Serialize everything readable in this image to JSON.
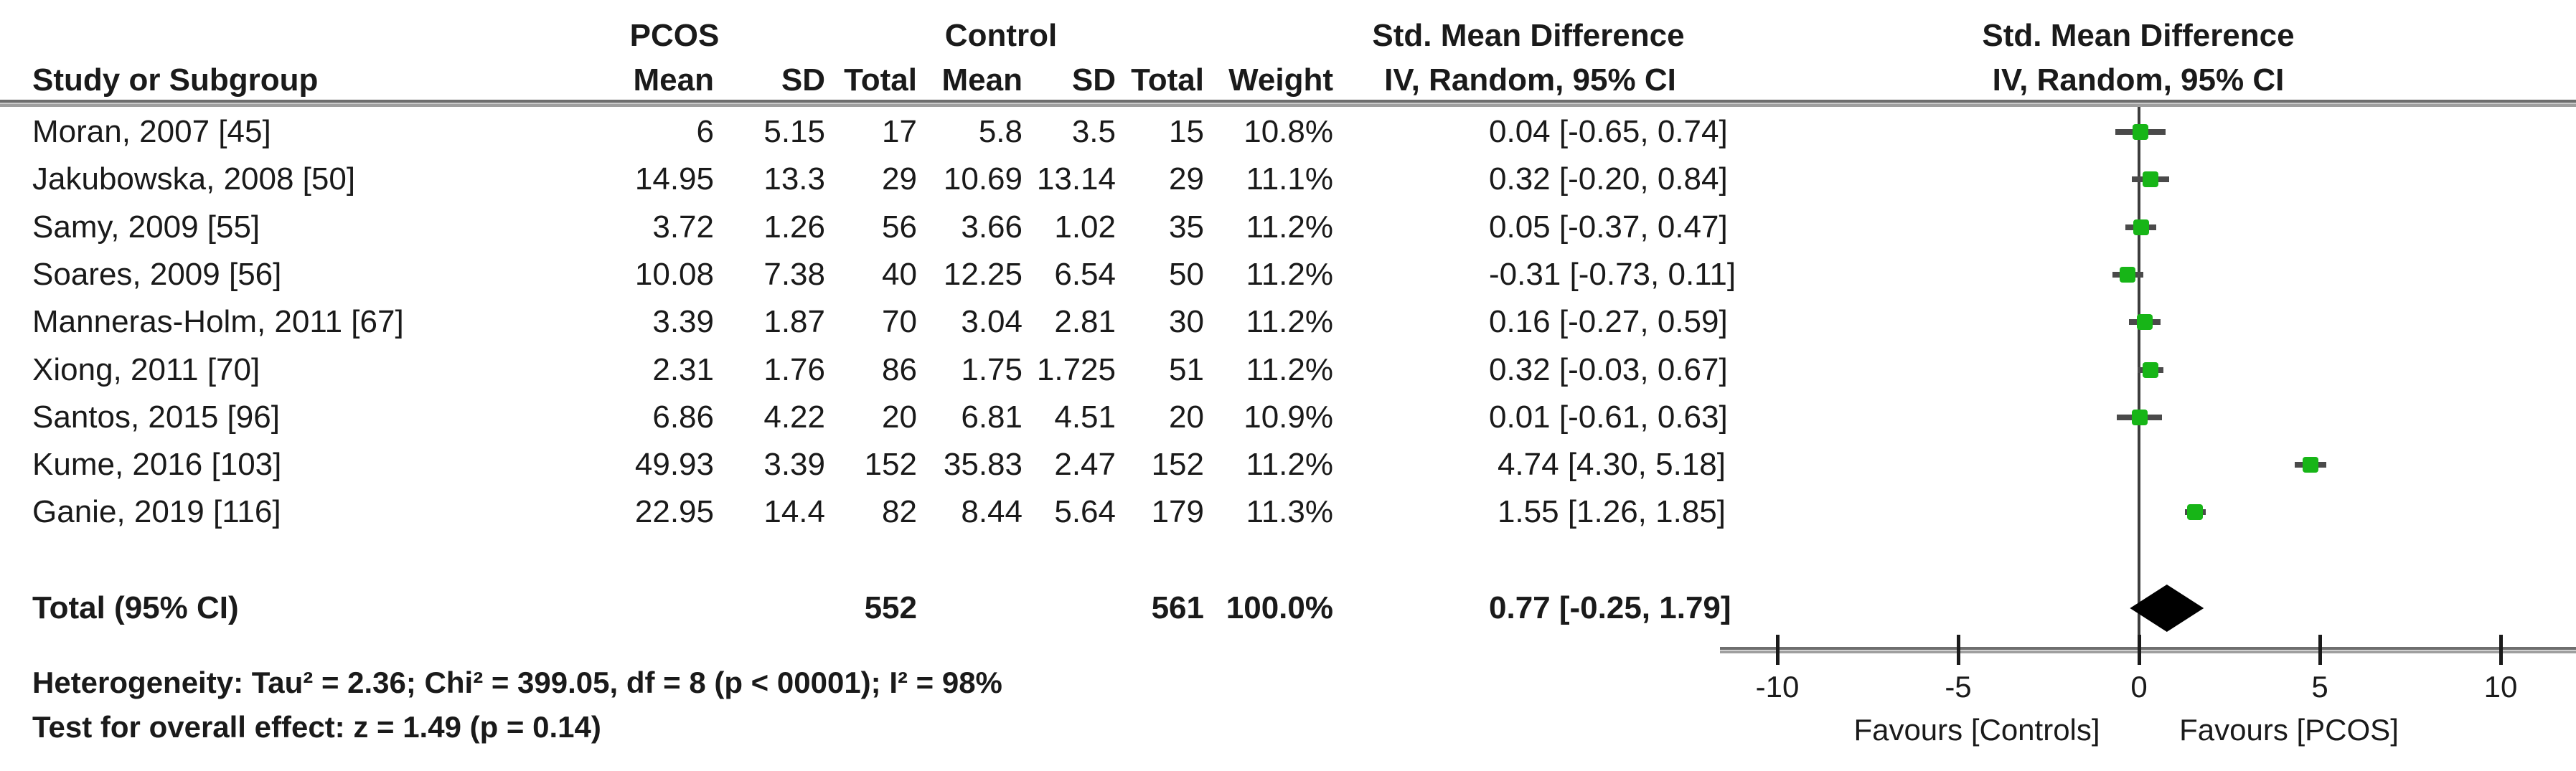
{
  "table": {
    "group_headers": {
      "pcos": "PCOS",
      "control": "Control",
      "smd_table": "Std. Mean Difference",
      "smd_plot": "Std. Mean Difference"
    },
    "col_headers": {
      "study": "Study or Subgroup",
      "pcos_mean": "Mean",
      "pcos_sd": "SD",
      "pcos_total": "Total",
      "ctrl_mean": "Mean",
      "ctrl_sd": "SD",
      "ctrl_total": "Total",
      "weight": "Weight",
      "ci": "IV, Random, 95% CI",
      "ci_plot": "IV, Random, 95% CI"
    },
    "studies": [
      {
        "name": "Moran, 2007 [45]",
        "pcos_mean": "6",
        "pcos_sd": "5.15",
        "pcos_total": "17",
        "ctrl_mean": "5.8",
        "ctrl_sd": "3.5",
        "ctrl_total": "15",
        "weight": "10.8%",
        "ci_text": "0.04 [-0.65, 0.74]"
      },
      {
        "name": "Jakubowska, 2008 [50]",
        "pcos_mean": "14.95",
        "pcos_sd": "13.3",
        "pcos_total": "29",
        "ctrl_mean": "10.69",
        "ctrl_sd": "13.14",
        "ctrl_total": "29",
        "weight": "11.1%",
        "ci_text": "0.32 [-0.20, 0.84]"
      },
      {
        "name": "Samy, 2009 [55]",
        "pcos_mean": "3.72",
        "pcos_sd": "1.26",
        "pcos_total": "56",
        "ctrl_mean": "3.66",
        "ctrl_sd": "1.02",
        "ctrl_total": "35",
        "weight": "11.2%",
        "ci_text": "0.05 [-0.37, 0.47]"
      },
      {
        "name": "Soares, 2009 [56]",
        "pcos_mean": "10.08",
        "pcos_sd": "7.38",
        "pcos_total": "40",
        "ctrl_mean": "12.25",
        "ctrl_sd": "6.54",
        "ctrl_total": "50",
        "weight": "11.2%",
        "ci_text": "-0.31 [-0.73, 0.11]"
      },
      {
        "name": "Manneras-Holm, 2011 [67]",
        "pcos_mean": "3.39",
        "pcos_sd": "1.87",
        "pcos_total": "70",
        "ctrl_mean": "3.04",
        "ctrl_sd": "2.81",
        "ctrl_total": "30",
        "weight": "11.2%",
        "ci_text": "0.16 [-0.27, 0.59]"
      },
      {
        "name": "Xiong, 2011 [70]",
        "pcos_mean": "2.31",
        "pcos_sd": "1.76",
        "pcos_total": "86",
        "ctrl_mean": "1.75",
        "ctrl_sd": "1.725",
        "ctrl_total": "51",
        "weight": "11.2%",
        "ci_text": "0.32 [-0.03, 0.67]"
      },
      {
        "name": "Santos, 2015 [96]",
        "pcos_mean": "6.86",
        "pcos_sd": "4.22",
        "pcos_total": "20",
        "ctrl_mean": "6.81",
        "ctrl_sd": "4.51",
        "ctrl_total": "20",
        "weight": "10.9%",
        "ci_text": "0.01 [-0.61, 0.63]"
      },
      {
        "name": "Kume, 2016 [103]",
        "pcos_mean": "49.93",
        "pcos_sd": "3.39",
        "pcos_total": "152",
        "ctrl_mean": "35.83",
        "ctrl_sd": "2.47",
        "ctrl_total": "152",
        "weight": "11.2%",
        "ci_text": "4.74 [4.30, 5.18]"
      },
      {
        "name": "Ganie, 2019 [116]",
        "pcos_mean": "22.95",
        "pcos_sd": "14.4",
        "pcos_total": "82",
        "ctrl_mean": "8.44",
        "ctrl_sd": "5.64",
        "ctrl_total": "179",
        "weight": "11.3%",
        "ci_text": "1.55 [1.26, 1.85]"
      }
    ],
    "total_row": {
      "label": "Total (95% CI)",
      "pcos_total": "552",
      "ctrl_total": "561",
      "weight": "100.0%",
      "ci_text": "0.77 [-0.25, 1.79]"
    },
    "footer": {
      "heterogeneity": "Heterogeneity: Tau² = 2.36; Chi² = 399.05, df = 8 (p < 00001); I² = 98%",
      "overall_effect": "Test for overall effect: z = 1.49 (p = 0.14)"
    }
  },
  "chart_data": {
    "type": "forest",
    "title": "Std. Mean Difference, IV, Random, 95% CI",
    "x_axis": {
      "ticks": [
        -10,
        -5,
        0,
        5,
        10
      ],
      "min": -11.6,
      "max": 12.1,
      "label_left": "Favours [Controls]",
      "label_right": "Favours [PCOS]"
    },
    "effects": [
      {
        "study": "Moran, 2007 [45]",
        "smd": 0.04,
        "ci_low": -0.65,
        "ci_high": 0.74,
        "weight_pct": 10.8
      },
      {
        "study": "Jakubowska, 2008 [50]",
        "smd": 0.32,
        "ci_low": -0.2,
        "ci_high": 0.84,
        "weight_pct": 11.1
      },
      {
        "study": "Samy, 2009 [55]",
        "smd": 0.05,
        "ci_low": -0.37,
        "ci_high": 0.47,
        "weight_pct": 11.2
      },
      {
        "study": "Soares, 2009 [56]",
        "smd": -0.31,
        "ci_low": -0.73,
        "ci_high": 0.11,
        "weight_pct": 11.2
      },
      {
        "study": "Manneras-Holm, 2011 [67]",
        "smd": 0.16,
        "ci_low": -0.27,
        "ci_high": 0.59,
        "weight_pct": 11.2
      },
      {
        "study": "Xiong, 2011 [70]",
        "smd": 0.32,
        "ci_low": -0.03,
        "ci_high": 0.67,
        "weight_pct": 11.2
      },
      {
        "study": "Santos, 2015 [96]",
        "smd": 0.01,
        "ci_low": -0.61,
        "ci_high": 0.63,
        "weight_pct": 10.9
      },
      {
        "study": "Kume, 2016 [103]",
        "smd": 4.74,
        "ci_low": 4.3,
        "ci_high": 5.18,
        "weight_pct": 11.2
      },
      {
        "study": "Ganie, 2019 [116]",
        "smd": 1.55,
        "ci_low": 1.26,
        "ci_high": 1.85,
        "weight_pct": 11.3
      }
    ],
    "total": {
      "label": "Total (95% CI)",
      "smd": 0.77,
      "ci_low": -0.25,
      "ci_high": 1.79,
      "weight_pct": 100.0
    },
    "colors": {
      "marker_green": "#17b517",
      "diamond_black": "#000000",
      "rule_gray": "#808080"
    }
  }
}
